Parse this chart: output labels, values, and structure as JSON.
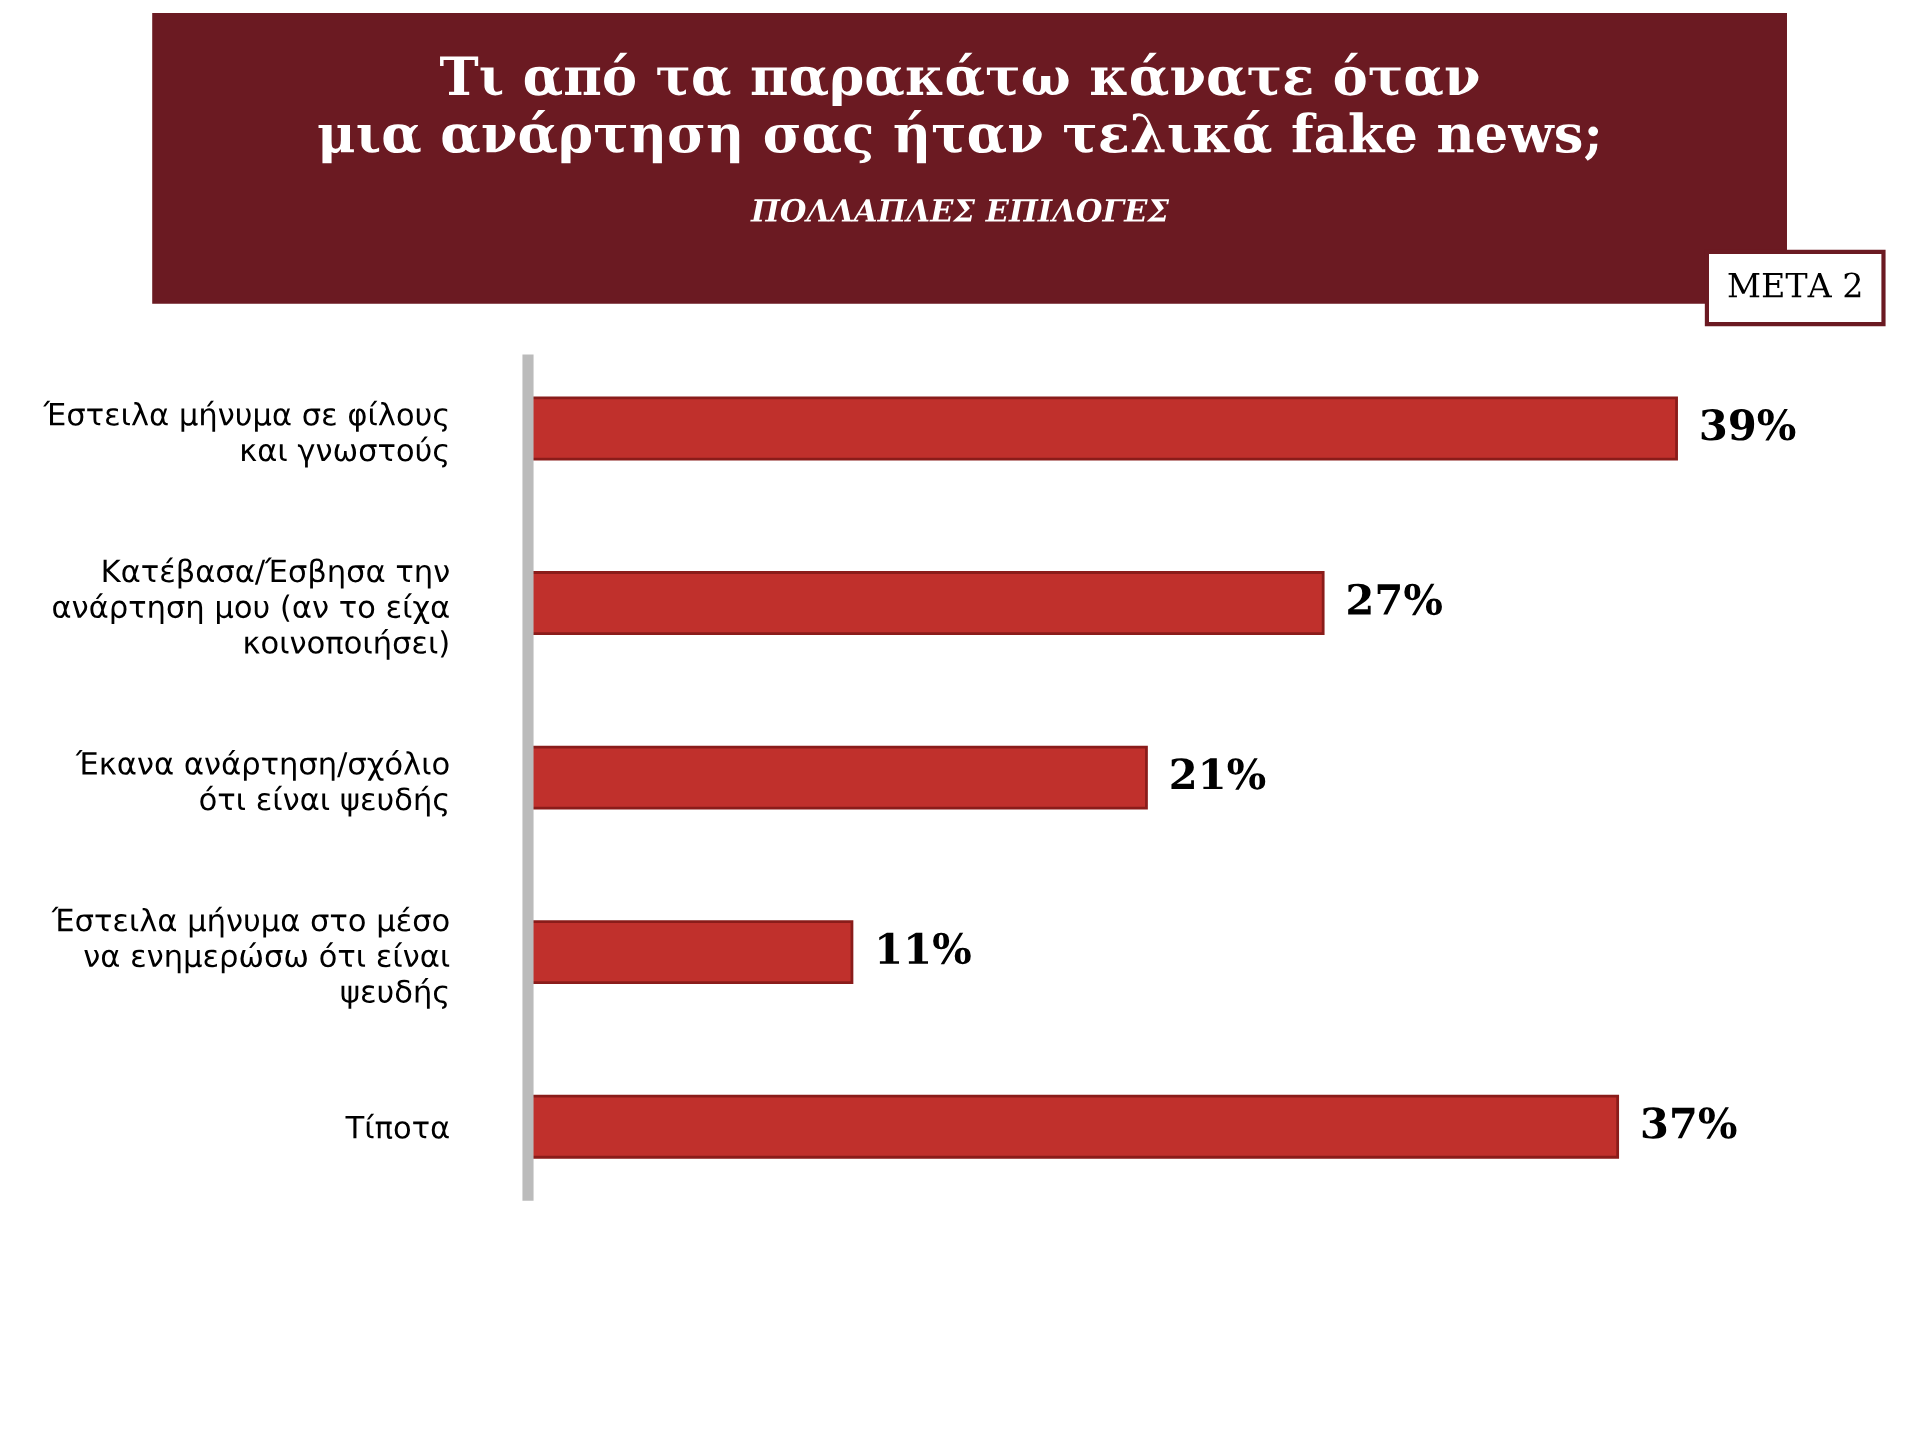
{
  "chart_data": {
    "type": "bar",
    "orientation": "horizontal",
    "title": "Τι από τα παρακάτω κάνατε όταν\nμια ανάρτηση σας ήταν τελικά fake news;",
    "subtitle": "ΠΟΛΛΑΠΛΕΣ ΕΠΙΛΟΓΕΣ",
    "annotations": [
      "ΜΕΤΑ 2"
    ],
    "categories": [
      "Έστειλα μήνυμα σε φίλους\nκαι γνωστούς",
      "Κατέβασα/Έσβησα την\nανάρτηση μου (αν το είχα\nκοινοποιήσει)",
      "Έκανα ανάρτηση/σχόλιο\nότι είναι ψευδής",
      "Έστειλα μήνυμα στο μέσο\nνα ενημερώσω ότι είναι\nψευδής",
      "Τίποτα"
    ],
    "values": [
      39,
      27,
      21,
      11,
      37
    ],
    "value_labels": [
      "39%",
      "27%",
      "21%",
      "11%",
      "37%"
    ],
    "color": "#c0302c",
    "grid": false,
    "legend": false
  }
}
